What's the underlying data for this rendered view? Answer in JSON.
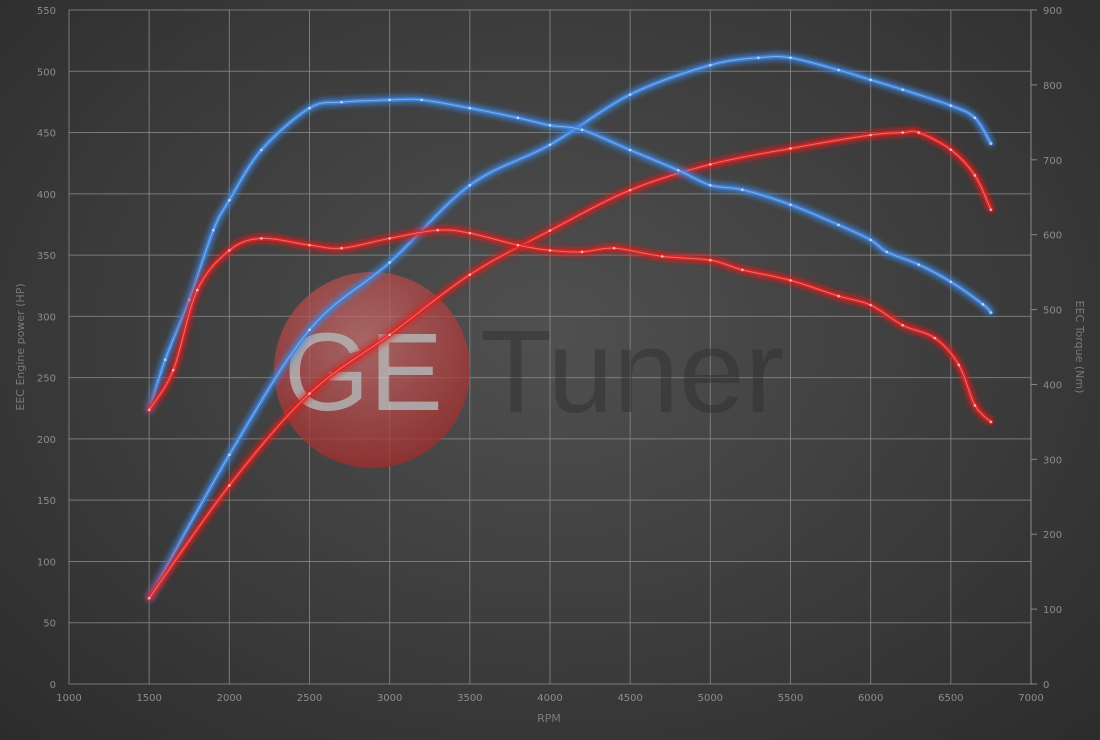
{
  "chart_data": {
    "type": "line",
    "title": "",
    "xlabel": "RPM",
    "ylabel_left": "EEC Engine power (HP)",
    "ylabel_right": "EEC Torque (Nm)",
    "xlim": [
      1000,
      7000
    ],
    "ylim_left": [
      0,
      550
    ],
    "ylim_right": [
      0,
      900
    ],
    "x_ticks": [
      1000,
      1500,
      2000,
      2500,
      3000,
      3500,
      4000,
      4500,
      5000,
      5500,
      6000,
      6500,
      7000
    ],
    "y_ticks_left": [
      0,
      50,
      100,
      150,
      200,
      250,
      300,
      350,
      400,
      450,
      500,
      550
    ],
    "y_ticks_right": [
      0,
      100,
      200,
      300,
      400,
      500,
      600,
      700,
      800,
      900
    ],
    "grid": true,
    "legend": "none",
    "series": [
      {
        "axis": "left",
        "color": "#3f86e0",
        "points": [
          [
            1500,
            70
          ],
          [
            2000,
            187
          ],
          [
            2500,
            289
          ],
          [
            3000,
            344
          ],
          [
            3500,
            407
          ],
          [
            4000,
            440
          ],
          [
            4500,
            481
          ],
          [
            5000,
            505
          ],
          [
            5300,
            511
          ],
          [
            5500,
            511
          ],
          [
            5800,
            501
          ],
          [
            6000,
            493
          ],
          [
            6200,
            485
          ],
          [
            6500,
            472
          ],
          [
            6650,
            462
          ],
          [
            6750,
            441
          ]
        ]
      },
      {
        "axis": "left",
        "color": "#e02424",
        "points": [
          [
            1500,
            70
          ],
          [
            2000,
            162
          ],
          [
            2500,
            237
          ],
          [
            3000,
            285
          ],
          [
            3500,
            334
          ],
          [
            4000,
            370
          ],
          [
            4500,
            403
          ],
          [
            5000,
            424
          ],
          [
            5500,
            437
          ],
          [
            6000,
            448
          ],
          [
            6200,
            450
          ],
          [
            6300,
            450
          ],
          [
            6500,
            436
          ],
          [
            6650,
            415
          ],
          [
            6750,
            387
          ]
        ]
      },
      {
        "axis": "right",
        "color": "#3f86e0",
        "points": [
          [
            1500,
            366
          ],
          [
            1600,
            433
          ],
          [
            1750,
            513
          ],
          [
            1900,
            606
          ],
          [
            2000,
            646
          ],
          [
            2200,
            713
          ],
          [
            2500,
            769
          ],
          [
            2700,
            777
          ],
          [
            3000,
            780
          ],
          [
            3200,
            780
          ],
          [
            3500,
            769
          ],
          [
            3800,
            756
          ],
          [
            4000,
            746
          ],
          [
            4200,
            740
          ],
          [
            4500,
            713
          ],
          [
            4800,
            686
          ],
          [
            5000,
            666
          ],
          [
            5200,
            660
          ],
          [
            5500,
            640
          ],
          [
            5800,
            613
          ],
          [
            6000,
            593
          ],
          [
            6100,
            577
          ],
          [
            6300,
            560
          ],
          [
            6500,
            537
          ],
          [
            6700,
            507
          ],
          [
            6750,
            496
          ]
        ]
      },
      {
        "axis": "right",
        "color": "#e02424",
        "points": [
          [
            1500,
            366
          ],
          [
            1650,
            419
          ],
          [
            1800,
            526
          ],
          [
            2000,
            579
          ],
          [
            2200,
            595
          ],
          [
            2500,
            586
          ],
          [
            2700,
            582
          ],
          [
            3000,
            595
          ],
          [
            3300,
            606
          ],
          [
            3500,
            602
          ],
          [
            3800,
            586
          ],
          [
            4000,
            579
          ],
          [
            4200,
            577
          ],
          [
            4400,
            582
          ],
          [
            4700,
            571
          ],
          [
            5000,
            566
          ],
          [
            5200,
            553
          ],
          [
            5500,
            539
          ],
          [
            5800,
            518
          ],
          [
            6000,
            506
          ],
          [
            6200,
            479
          ],
          [
            6400,
            462
          ],
          [
            6550,
            426
          ],
          [
            6650,
            372
          ],
          [
            6750,
            350
          ]
        ]
      }
    ]
  },
  "watermark": {
    "logo_text": "GE",
    "brand_text": "Tuner",
    "logo_color": "#b03030"
  }
}
